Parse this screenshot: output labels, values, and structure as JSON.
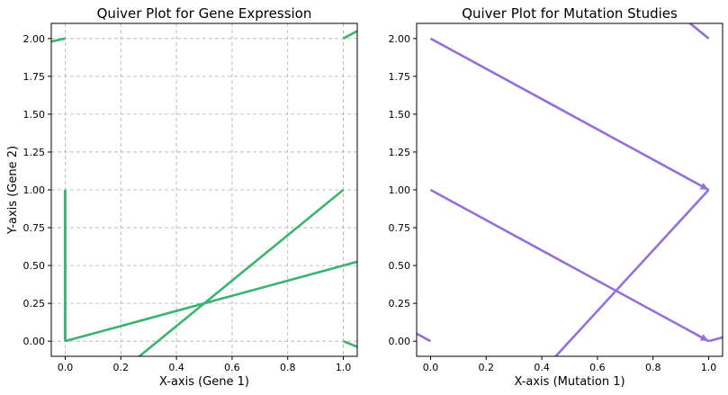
{
  "chart_data": [
    {
      "type": "quiver",
      "title": "Quiver Plot for Gene Expression",
      "xlabel": "X-axis (Gene 1)",
      "ylabel": "Y-axis (Gene 2)",
      "xlim": [
        -0.05,
        1.05
      ],
      "ylim": [
        -0.1,
        2.1
      ],
      "xticks": [
        0.0,
        0.2,
        0.4,
        0.6,
        0.8,
        1.0
      ],
      "yticks": [
        0.0,
        0.25,
        0.5,
        0.75,
        1.0,
        1.25,
        1.5,
        1.75,
        2.0
      ],
      "grid": true,
      "color": "#3cb371",
      "arrowheads": false,
      "segments": [
        [
          0,
          0,
          0,
          1
        ],
        [
          0,
          1,
          0,
          0
        ],
        [
          0,
          0,
          1.3,
          0.65
        ],
        [
          1,
          1,
          0.2,
          -0.2
        ],
        [
          0,
          2,
          -0.25,
          1.9
        ],
        [
          1,
          2,
          1.2,
          2.2
        ],
        [
          1,
          0,
          1.2,
          -0.15
        ]
      ]
    },
    {
      "type": "quiver",
      "title": "Quiver Plot for Mutation Studies",
      "xlabel": "X-axis (Mutation 1)",
      "ylabel": "",
      "xlim": [
        -0.05,
        1.05
      ],
      "ylim": [
        -0.1,
        2.1
      ],
      "xticks": [
        0.0,
        0.2,
        0.4,
        0.6,
        0.8,
        1.0
      ],
      "yticks": [
        0.0,
        0.25,
        0.5,
        0.75,
        1.0,
        1.25,
        1.5,
        1.75,
        2.0
      ],
      "grid": false,
      "color": "#9370db",
      "arrowheads": true,
      "segments": [
        [
          0,
          2,
          1,
          1
        ],
        [
          0,
          1,
          1,
          0
        ],
        [
          1,
          1,
          0.35,
          -0.3
        ],
        [
          0,
          0,
          -0.2,
          0.2
        ],
        [
          1,
          2,
          0.9,
          2.15
        ],
        [
          1,
          0,
          1.2,
          0.1
        ]
      ]
    }
  ]
}
